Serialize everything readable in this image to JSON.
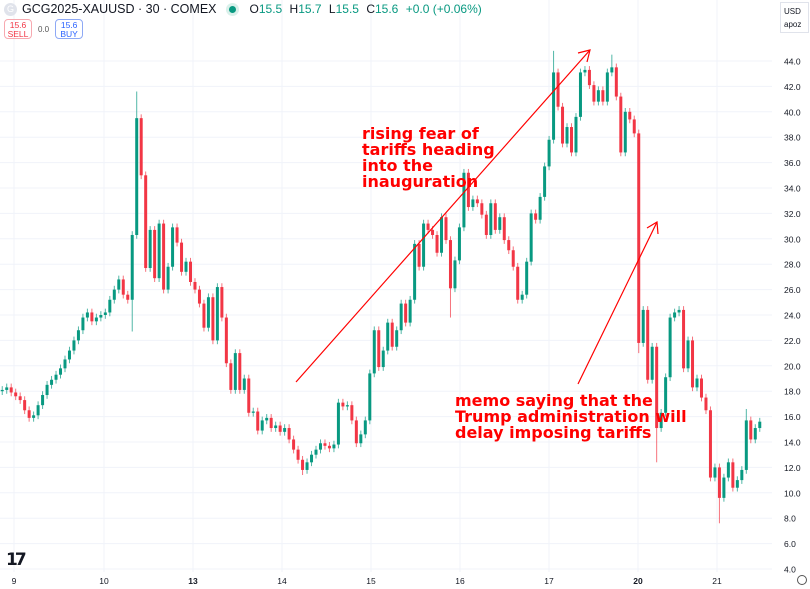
{
  "header": {
    "logo_letter": "G",
    "title": "GCG2025-XAUUSD · 30 · COMEX",
    "ohlc": {
      "o_label": "O",
      "o": "15.5",
      "h_label": "H",
      "h": "15.7",
      "l_label": "L",
      "l": "15.5",
      "c_label": "C",
      "c": "15.6",
      "change": "+0.0 (+0.06%)"
    },
    "market_status_color": "#089981"
  },
  "trade": {
    "sell_price": "15.6",
    "sell_label": "SELL",
    "spread": "0.0",
    "buy_price": "15.6",
    "buy_label": "BUY"
  },
  "price_scale": {
    "currency": "USD",
    "unit": "apoz"
  },
  "annotations": {
    "rise": "rising fear of\ntariffs heading\ninto the\ninauguration",
    "drop": "memo saying that the\nTrump administration will\ndelay imposing tariffs",
    "color": "#ff0000"
  },
  "chart_data": {
    "type": "candlestick",
    "title": "",
    "xlabel": "",
    "ylabel": "",
    "ylim": [
      4,
      46
    ],
    "y_ticks": [
      "4.0",
      "6.0",
      "8.0",
      "10.0",
      "12.0",
      "14.0",
      "16.0",
      "18.0",
      "20.0",
      "22.0",
      "24.0",
      "26.0",
      "28.0",
      "30.0",
      "32.0",
      "34.0",
      "36.0",
      "38.0",
      "40.0",
      "42.0",
      "44.0"
    ],
    "x_ticks": [
      {
        "label": "9",
        "bold": false
      },
      {
        "label": "10",
        "bold": false
      },
      {
        "label": "13",
        "bold": true
      },
      {
        "label": "14",
        "bold": false
      },
      {
        "label": "15",
        "bold": false
      },
      {
        "label": "16",
        "bold": false
      },
      {
        "label": "17",
        "bold": false
      },
      {
        "label": "20",
        "bold": true
      },
      {
        "label": "21",
        "bold": false
      }
    ],
    "grid": true,
    "up_color": "#089981",
    "down_color": "#f23645",
    "first_open": 18.0,
    "close": [
      18.1,
      18.3,
      17.9,
      17.6,
      17.3,
      16.5,
      15.9,
      16.1,
      16.9,
      17.7,
      18.5,
      18.9,
      19.3,
      19.8,
      20.5,
      21.2,
      22.0,
      22.8,
      23.8,
      24.2,
      23.5,
      23.8,
      24.0,
      24.2,
      25.2,
      26.0,
      26.8,
      25.6,
      25.2,
      30.3,
      39.5,
      35.0,
      27.7,
      30.7,
      26.9,
      31.2,
      26.0,
      27.8,
      30.9,
      29.7,
      27.4,
      28.2,
      26.6,
      26.0,
      24.9,
      23.0,
      25.4,
      22.0,
      26.2,
      23.8,
      20.2,
      18.1,
      21.0,
      18.1,
      19.0,
      16.3,
      16.4,
      14.9,
      15.7,
      15.9,
      15.1,
      15.3,
      14.8,
      15.1,
      14.2,
      13.4,
      12.6,
      11.8,
      12.4,
      13.0,
      13.4,
      13.9,
      13.7,
      13.5,
      13.8,
      17.1,
      16.8,
      16.9,
      15.7,
      13.9,
      14.6,
      15.7,
      19.4,
      22.8,
      19.9,
      21.2,
      23.4,
      21.5,
      22.8,
      24.9,
      23.4,
      25.2,
      29.6,
      27.8,
      31.2,
      30.7,
      30.3,
      28.9,
      31.7,
      29.9,
      26.1,
      28.3,
      30.9,
      35.2,
      32.5,
      33.1,
      32.8,
      31.9,
      30.3,
      32.8,
      30.7,
      31.7,
      29.9,
      29.1,
      27.8,
      25.2,
      25.6,
      28.2,
      32.0,
      31.5,
      33.3,
      35.7,
      37.8,
      43.1,
      40.4,
      37.5,
      38.8,
      36.8,
      39.6,
      43.1,
      43.3,
      42.1,
      40.8,
      41.7,
      40.8,
      43.1,
      43.5,
      41.2,
      36.8,
      40.0,
      39.4,
      38.3,
      21.8,
      24.4,
      18.9,
      21.5,
      15.1,
      16.3,
      19.1,
      23.8,
      24.2,
      24.4,
      19.8,
      22.0,
      18.3,
      19.0,
      17.5,
      16.5,
      11.2,
      12.0,
      9.6,
      11.2,
      12.4,
      10.4,
      11.0,
      11.8,
      15.7,
      14.2,
      15.1,
      15.6
    ],
    "wick_extremes": [
      {
        "index": 29,
        "low": 22.7
      },
      {
        "index": 30,
        "high": 41.6
      },
      {
        "index": 67,
        "low": 11.4
      },
      {
        "index": 100,
        "low": 23.8
      },
      {
        "index": 123,
        "high": 44.8
      },
      {
        "index": 136,
        "high": 44.5
      },
      {
        "index": 142,
        "low": 21.0
      },
      {
        "index": 146,
        "low": 12.4
      },
      {
        "index": 160,
        "low": 7.6
      },
      {
        "index": 166,
        "high": 16.6
      }
    ]
  }
}
